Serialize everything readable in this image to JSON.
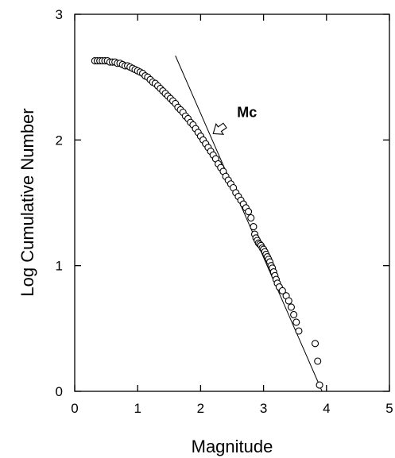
{
  "chart_data": {
    "type": "scatter",
    "title": "",
    "xlabel": "Magnitude",
    "ylabel": "Log Cumulative Number",
    "xlim": [
      0,
      5
    ],
    "ylim": [
      0,
      3
    ],
    "xticks": [
      "0",
      "1",
      "2",
      "3",
      "4",
      "5"
    ],
    "yticks": [
      "0",
      "1",
      "2",
      "3"
    ],
    "grid": false,
    "legend": "none",
    "marker": "open-circle",
    "series": [
      {
        "x": [
          0.32,
          0.36,
          0.4,
          0.44,
          0.48,
          0.52,
          0.56,
          0.6,
          0.64,
          0.68,
          0.72,
          0.76,
          0.8,
          0.84,
          0.88,
          0.92,
          0.96,
          1.0,
          1.04,
          1.08,
          1.12,
          1.16,
          1.2,
          1.24,
          1.28,
          1.32,
          1.36,
          1.4,
          1.44,
          1.48,
          1.52,
          1.56,
          1.6,
          1.64,
          1.68,
          1.72,
          1.76,
          1.8,
          1.84,
          1.88,
          1.92,
          1.96,
          2.0,
          2.04,
          2.08,
          2.12,
          2.16,
          2.2,
          2.24,
          2.28,
          2.32,
          2.36,
          2.4,
          2.44,
          2.48,
          2.52,
          2.56,
          2.6,
          2.64,
          2.68,
          2.72,
          2.76,
          2.8,
          2.84,
          2.86,
          2.88,
          2.9,
          2.92,
          2.94,
          2.96,
          2.98,
          3.0,
          3.02,
          3.04,
          3.06,
          3.08,
          3.1,
          3.12,
          3.14,
          3.16,
          3.18,
          3.2,
          3.22,
          3.25,
          3.3,
          3.36,
          3.4,
          3.44,
          3.48,
          3.52,
          3.56,
          3.82,
          3.86,
          3.89
        ],
        "y": [
          2.63,
          2.63,
          2.63,
          2.63,
          2.63,
          2.63,
          2.62,
          2.62,
          2.62,
          2.61,
          2.61,
          2.6,
          2.59,
          2.59,
          2.58,
          2.57,
          2.56,
          2.55,
          2.54,
          2.53,
          2.51,
          2.5,
          2.48,
          2.46,
          2.45,
          2.43,
          2.41,
          2.39,
          2.37,
          2.35,
          2.33,
          2.31,
          2.29,
          2.26,
          2.24,
          2.22,
          2.19,
          2.17,
          2.14,
          2.12,
          2.09,
          2.06,
          2.03,
          2.0,
          1.97,
          1.94,
          1.91,
          1.88,
          1.85,
          1.81,
          1.78,
          1.75,
          1.71,
          1.68,
          1.65,
          1.62,
          1.58,
          1.55,
          1.52,
          1.49,
          1.46,
          1.43,
          1.38,
          1.31,
          1.25,
          1.22,
          1.2,
          1.18,
          1.17,
          1.16,
          1.14,
          1.13,
          1.11,
          1.09,
          1.07,
          1.05,
          1.03,
          1.0,
          0.98,
          0.95,
          0.92,
          0.89,
          0.86,
          0.83,
          0.8,
          0.76,
          0.72,
          0.67,
          0.61,
          0.55,
          0.48,
          0.38,
          0.24,
          0.05
        ]
      }
    ],
    "fit_line": {
      "x": [
        1.6,
        3.93
      ],
      "y": [
        2.67,
        0.0
      ]
    },
    "annotations": [
      {
        "text": "Mc",
        "arrow_to": [
          2.2,
          2.05
        ]
      }
    ]
  }
}
